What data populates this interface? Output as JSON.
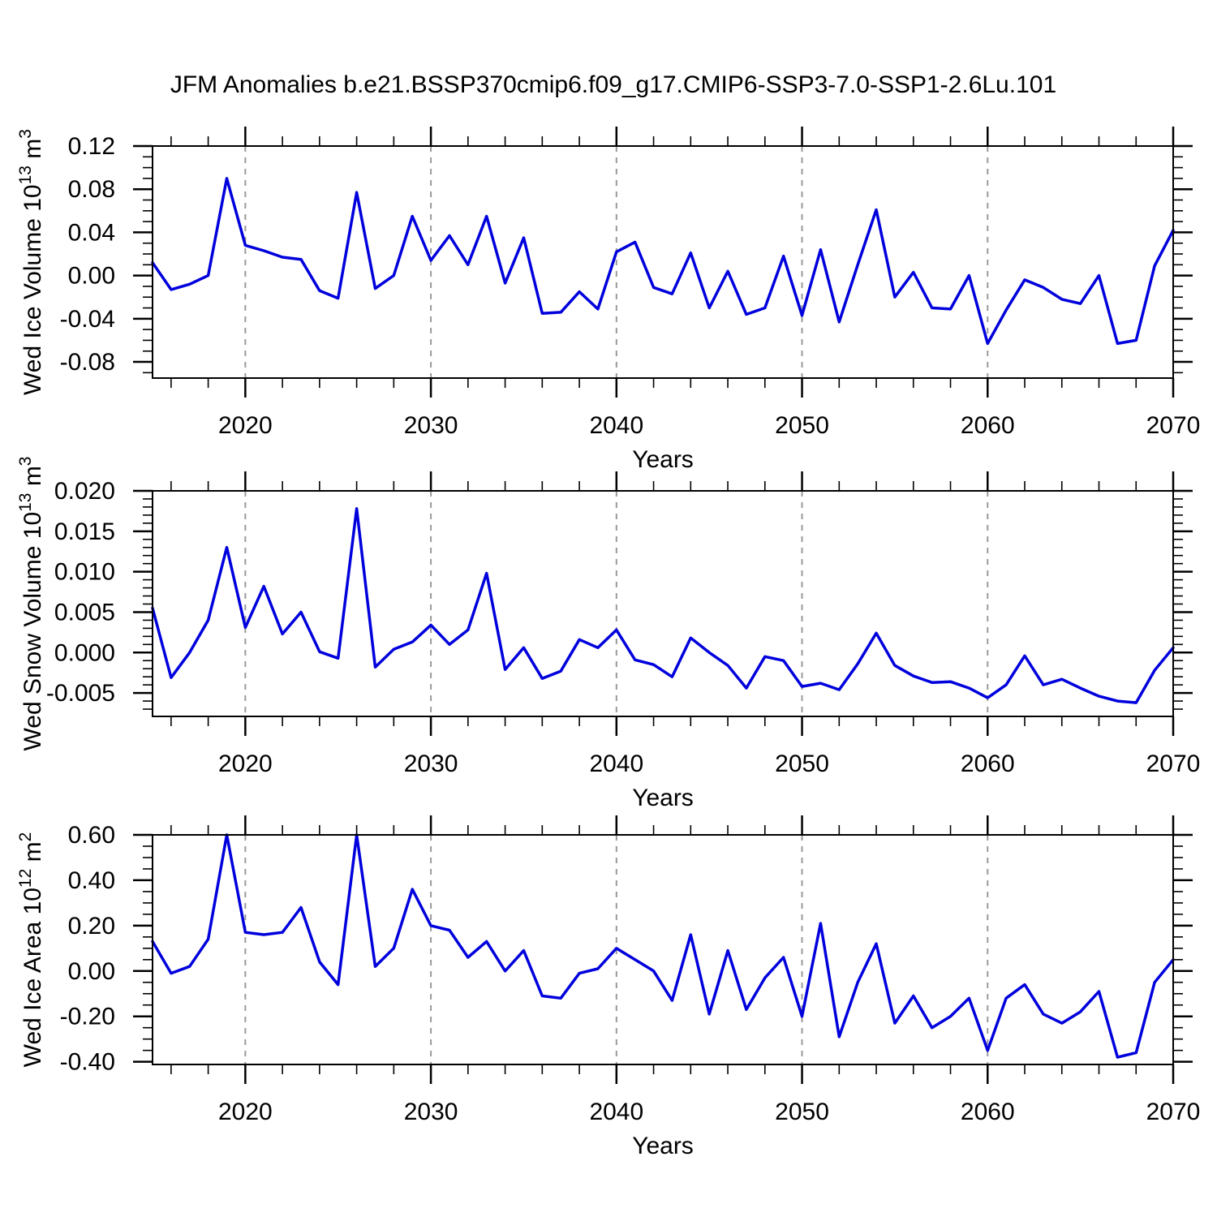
{
  "title": "JFM Anomalies b.e21.BSSP370cmip6.f09_g17.CMIP6-SSP3-7.0-SSP1-2.6Lu.101",
  "figure": {
    "background": "#ffffff",
    "line_color": "#0000dd",
    "axis_color": "#000000",
    "grid_color": "#9a9a9a"
  },
  "chart_data": [
    {
      "type": "line",
      "id": "ice-volume",
      "ylabel": "Wed Ice Volume 10^13 m^3",
      "ylabel_segments": [
        {
          "t": "Wed Ice Volume 10"
        },
        {
          "t": "13",
          "sup": true
        },
        {
          "t": " m"
        },
        {
          "t": "3",
          "sup": true
        }
      ],
      "xlabel": "Years",
      "xlim": [
        2015,
        2070
      ],
      "ylim": [
        -0.095,
        0.12
      ],
      "grid_x": [
        2020,
        2030,
        2040,
        2050,
        2060
      ],
      "grid_style": "dashed-vertical",
      "legend": "none",
      "xticks": {
        "values": [
          2020,
          2030,
          2040,
          2050,
          2060,
          2070
        ],
        "labels": [
          "2020",
          "2030",
          "2040",
          "2050",
          "2060",
          "2070"
        ],
        "minor_step": 2
      },
      "yticks": {
        "values": [
          0.12,
          0.08,
          0.04,
          0.0,
          -0.04,
          -0.08
        ],
        "labels": [
          "0.12",
          "0.08",
          "0.04",
          "0.00",
          "-0.04",
          "-0.08"
        ],
        "minor_step": 0.01
      },
      "years": [
        2015,
        2016,
        2017,
        2018,
        2019,
        2020,
        2021,
        2022,
        2023,
        2024,
        2025,
        2026,
        2027,
        2028,
        2029,
        2030,
        2031,
        2032,
        2033,
        2034,
        2035,
        2036,
        2037,
        2038,
        2039,
        2040,
        2041,
        2042,
        2043,
        2044,
        2045,
        2046,
        2047,
        2048,
        2049,
        2050,
        2051,
        2052,
        2053,
        2054,
        2055,
        2056,
        2057,
        2058,
        2059,
        2060,
        2061,
        2062,
        2063,
        2064,
        2065,
        2066,
        2067,
        2068,
        2069,
        2070
      ],
      "series": [
        {
          "name": "Wed Ice Volume anomaly",
          "values": [
            0.012,
            -0.013,
            -0.008,
            0.0,
            0.09,
            0.028,
            0.023,
            0.017,
            0.015,
            -0.014,
            -0.021,
            0.077,
            -0.012,
            0.0,
            0.055,
            0.014,
            0.037,
            0.01,
            0.055,
            -0.007,
            0.035,
            -0.035,
            -0.034,
            -0.015,
            -0.031,
            0.022,
            0.031,
            -0.011,
            -0.017,
            0.021,
            -0.03,
            0.004,
            -0.036,
            -0.03,
            0.018,
            -0.037,
            0.024,
            -0.043,
            0.01,
            0.061,
            -0.02,
            0.003,
            -0.03,
            -0.031,
            0.0,
            -0.063,
            -0.032,
            -0.004,
            -0.011,
            -0.022,
            -0.026,
            0.0,
            -0.063,
            -0.06,
            0.009,
            0.042
          ]
        }
      ]
    },
    {
      "type": "line",
      "id": "snow-volume",
      "ylabel": "Wed Snow Volume 10^13 m^3",
      "ylabel_segments": [
        {
          "t": "Wed Snow Volume 10"
        },
        {
          "t": "13",
          "sup": true
        },
        {
          "t": " m"
        },
        {
          "t": "3",
          "sup": true
        }
      ],
      "xlabel": "Years",
      "xlim": [
        2015,
        2070
      ],
      "ylim": [
        -0.0079,
        0.02
      ],
      "grid_x": [
        2020,
        2030,
        2040,
        2050,
        2060
      ],
      "grid_style": "dashed-vertical",
      "legend": "none",
      "xticks": {
        "values": [
          2020,
          2030,
          2040,
          2050,
          2060,
          2070
        ],
        "labels": [
          "2020",
          "2030",
          "2040",
          "2050",
          "2060",
          "2070"
        ],
        "minor_step": 2
      },
      "yticks": {
        "values": [
          0.02,
          0.015,
          0.01,
          0.005,
          0.0,
          -0.005
        ],
        "labels": [
          "0.020",
          "0.015",
          "0.010",
          "0.005",
          "0.000",
          "-0.005"
        ],
        "minor_step": 0.001
      },
      "years": [
        2015,
        2016,
        2017,
        2018,
        2019,
        2020,
        2021,
        2022,
        2023,
        2024,
        2025,
        2026,
        2027,
        2028,
        2029,
        2030,
        2031,
        2032,
        2033,
        2034,
        2035,
        2036,
        2037,
        2038,
        2039,
        2040,
        2041,
        2042,
        2043,
        2044,
        2045,
        2046,
        2047,
        2048,
        2049,
        2050,
        2051,
        2052,
        2053,
        2054,
        2055,
        2056,
        2057,
        2058,
        2059,
        2060,
        2061,
        2062,
        2063,
        2064,
        2065,
        2066,
        2067,
        2068,
        2069,
        2070
      ],
      "series": [
        {
          "name": "Wed Snow Volume anomaly",
          "values": [
            0.0055,
            -0.0031,
            0.0,
            0.004,
            0.013,
            0.0031,
            0.0082,
            0.0023,
            0.005,
            0.0001,
            -0.0007,
            0.0178,
            -0.0018,
            0.0004,
            0.0013,
            0.0034,
            0.001,
            0.0028,
            0.0098,
            -0.0021,
            0.0006,
            -0.0032,
            -0.0023,
            0.0016,
            0.0006,
            0.0028,
            -0.0009,
            -0.0015,
            -0.003,
            0.0018,
            0.0,
            -0.0016,
            -0.0044,
            -0.0005,
            -0.001,
            -0.0042,
            -0.0038,
            -0.0046,
            -0.0014,
            0.0024,
            -0.0016,
            -0.0029,
            -0.0037,
            -0.0036,
            -0.0044,
            -0.0056,
            -0.004,
            -0.0004,
            -0.004,
            -0.0033,
            -0.0044,
            -0.0054,
            -0.006,
            -0.0062,
            -0.0022,
            0.0006
          ]
        }
      ]
    },
    {
      "type": "line",
      "id": "ice-area",
      "ylabel": "Wed Ice Area 10^12 m^2",
      "ylabel_segments": [
        {
          "t": "Wed Ice Area 10"
        },
        {
          "t": "12",
          "sup": true
        },
        {
          "t": " m"
        },
        {
          "t": "2",
          "sup": true
        }
      ],
      "xlabel": "Years",
      "xlim": [
        2015,
        2070
      ],
      "ylim": [
        -0.412,
        0.6
      ],
      "grid_x": [
        2020,
        2030,
        2040,
        2050,
        2060
      ],
      "grid_style": "dashed-vertical",
      "legend": "none",
      "xticks": {
        "values": [
          2020,
          2030,
          2040,
          2050,
          2060,
          2070
        ],
        "labels": [
          "2020",
          "2030",
          "2040",
          "2050",
          "2060",
          "2070"
        ],
        "minor_step": 2
      },
      "yticks": {
        "values": [
          0.6,
          0.4,
          0.2,
          0.0,
          -0.2,
          -0.4
        ],
        "labels": [
          "0.60",
          "0.40",
          "0.20",
          "0.00",
          "-0.20",
          "-0.40"
        ],
        "minor_step": 0.05
      },
      "years": [
        2015,
        2016,
        2017,
        2018,
        2019,
        2020,
        2021,
        2022,
        2023,
        2024,
        2025,
        2026,
        2027,
        2028,
        2029,
        2030,
        2031,
        2032,
        2033,
        2034,
        2035,
        2036,
        2037,
        2038,
        2039,
        2040,
        2041,
        2042,
        2043,
        2044,
        2045,
        2046,
        2047,
        2048,
        2049,
        2050,
        2051,
        2052,
        2053,
        2054,
        2055,
        2056,
        2057,
        2058,
        2059,
        2060,
        2061,
        2062,
        2063,
        2064,
        2065,
        2066,
        2067,
        2068,
        2069,
        2070
      ],
      "series": [
        {
          "name": "Wed Ice Area anomaly",
          "values": [
            0.13,
            -0.01,
            0.02,
            0.14,
            0.6,
            0.17,
            0.16,
            0.17,
            0.28,
            0.04,
            -0.06,
            0.6,
            0.02,
            0.1,
            0.36,
            0.2,
            0.18,
            0.06,
            0.13,
            0.0,
            0.09,
            -0.11,
            -0.12,
            -0.01,
            0.01,
            0.1,
            0.05,
            0.0,
            -0.13,
            0.16,
            -0.19,
            0.09,
            -0.17,
            -0.03,
            0.06,
            -0.2,
            0.21,
            -0.29,
            -0.05,
            0.12,
            -0.23,
            -0.11,
            -0.25,
            -0.2,
            -0.12,
            -0.35,
            -0.12,
            -0.06,
            -0.19,
            -0.23,
            -0.18,
            -0.09,
            -0.38,
            -0.36,
            -0.05,
            0.05
          ]
        }
      ]
    }
  ]
}
